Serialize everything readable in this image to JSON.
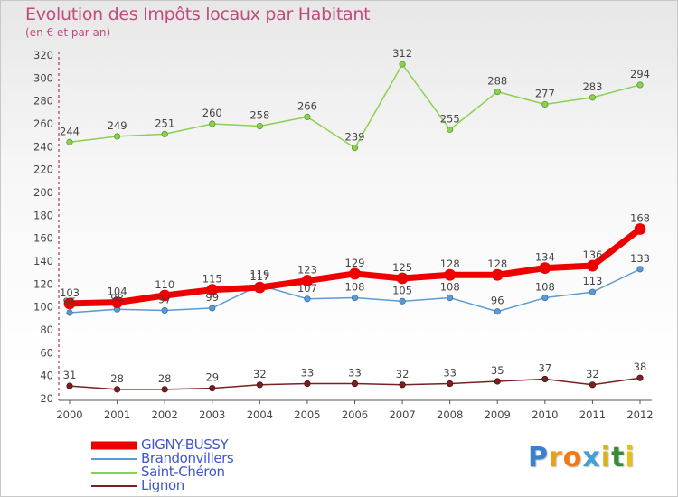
{
  "header": {
    "title": "Evolution des Impôts locaux par Habitant",
    "subtitle": "(en € et par an)"
  },
  "logo": {
    "text": "Proxiti",
    "letter_colors": [
      "#3a7fd0",
      "#e8a21a",
      "#f07a1a",
      "#40a0d8",
      "#d4b21a",
      "#3a8a3a",
      "#e0c21a"
    ]
  },
  "chart_data": {
    "type": "line",
    "x": [
      2000,
      2001,
      2002,
      2003,
      2004,
      2005,
      2006,
      2007,
      2008,
      2009,
      2010,
      2011,
      2012
    ],
    "xlabel": "",
    "ylabel": "",
    "ylim": [
      20,
      320
    ],
    "yticks": [
      20,
      40,
      60,
      80,
      100,
      120,
      140,
      160,
      180,
      200,
      220,
      240,
      260,
      280,
      300,
      320
    ],
    "grid": false,
    "legend_position": "bottom-left",
    "series": [
      {
        "name": "GIGNY-BUSSY",
        "color": "#ee0000",
        "values": [
          103,
          104,
          110,
          115,
          117,
          123,
          129,
          125,
          128,
          128,
          134,
          136,
          168
        ]
      },
      {
        "name": "Brandonvillers",
        "color": "#5b9bd5",
        "values": [
          95,
          98,
          97,
          99,
          119,
          107,
          108,
          105,
          108,
          96,
          108,
          113,
          133
        ]
      },
      {
        "name": "Saint-Chéron",
        "color": "#8cd050",
        "values": [
          244,
          249,
          251,
          260,
          258,
          266,
          239,
          312,
          255,
          288,
          277,
          283,
          294
        ]
      },
      {
        "name": "Lignon",
        "color": "#7a2020",
        "values": [
          31,
          28,
          28,
          29,
          32,
          33,
          33,
          32,
          33,
          35,
          37,
          32,
          38
        ]
      }
    ]
  }
}
